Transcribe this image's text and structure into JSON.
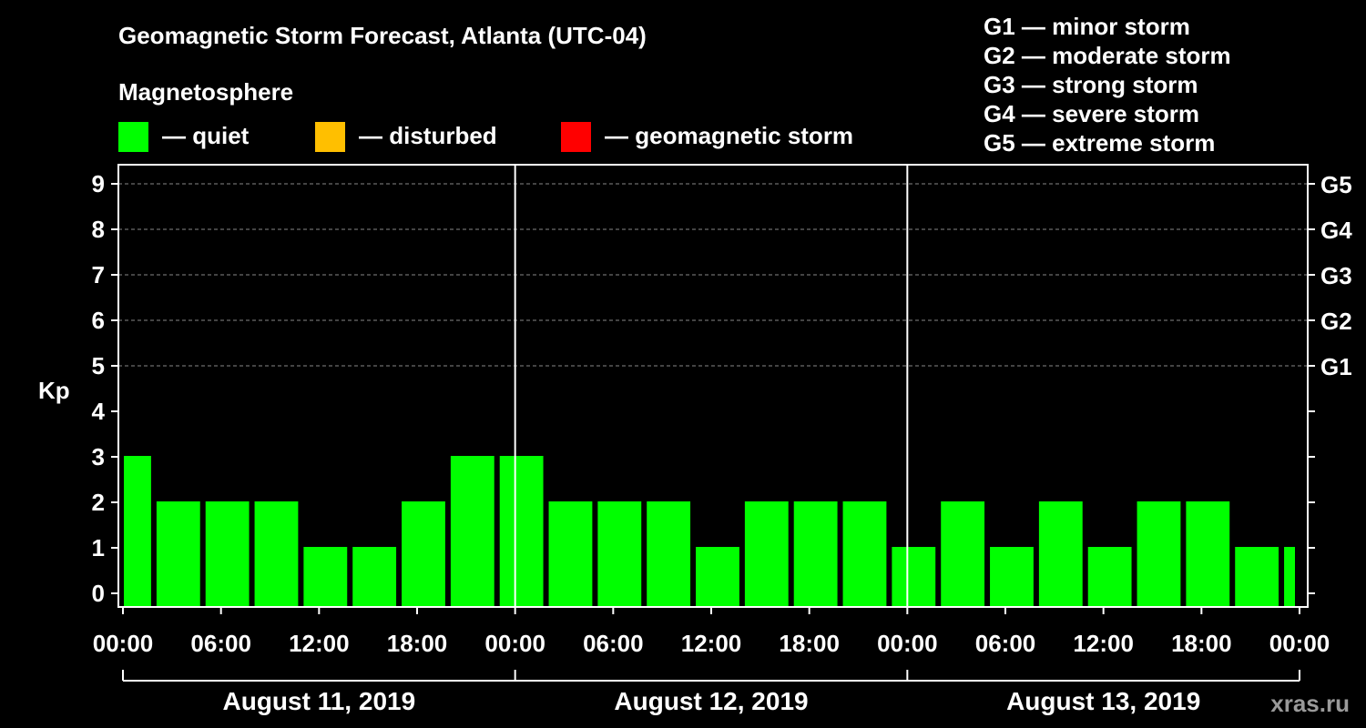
{
  "title": "Geomagnetic Storm Forecast, Atlanta (UTC-04)",
  "legend": {
    "heading": "Magnetosphere",
    "items": [
      {
        "label": "— quiet",
        "color": "#00ff00"
      },
      {
        "label": "— disturbed",
        "color": "#ffbf00"
      },
      {
        "label": "— geomagnetic storm",
        "color": "#ff0000"
      }
    ]
  },
  "storm_scale": [
    "G1 — minor storm",
    "G2 — moderate storm",
    "G3 — strong storm",
    "G4 — severe storm",
    "G5 — extreme storm"
  ],
  "watermark": "xras.ru",
  "chart_data": {
    "type": "bar",
    "ylabel": "Kp",
    "ylim": [
      0,
      9
    ],
    "yticks": [
      0,
      1,
      2,
      3,
      4,
      5,
      6,
      7,
      8,
      9
    ],
    "right_ticks": [
      {
        "kp": 5,
        "label": "G1"
      },
      {
        "kp": 6,
        "label": "G2"
      },
      {
        "kp": 7,
        "label": "G3"
      },
      {
        "kp": 8,
        "label": "G4"
      },
      {
        "kp": 9,
        "label": "G5"
      }
    ],
    "x_range_hours": [
      0,
      72
    ],
    "x_tick_hours": [
      0,
      6,
      12,
      18,
      24,
      30,
      36,
      42,
      48,
      54,
      60,
      66,
      72
    ],
    "x_tick_labels": [
      "00:00",
      "06:00",
      "12:00",
      "18:00",
      "00:00",
      "06:00",
      "12:00",
      "18:00",
      "00:00",
      "06:00",
      "12:00",
      "18:00",
      "00:00"
    ],
    "day_labels": [
      "August 11, 2019",
      "August 12, 2019",
      "August 13, 2019"
    ],
    "bars": [
      {
        "start": 0,
        "end": 2,
        "kp": 3
      },
      {
        "start": 2,
        "end": 5,
        "kp": 2
      },
      {
        "start": 5,
        "end": 8,
        "kp": 2
      },
      {
        "start": 8,
        "end": 11,
        "kp": 2
      },
      {
        "start": 11,
        "end": 14,
        "kp": 1
      },
      {
        "start": 14,
        "end": 17,
        "kp": 1
      },
      {
        "start": 17,
        "end": 20,
        "kp": 2
      },
      {
        "start": 20,
        "end": 23,
        "kp": 3
      },
      {
        "start": 23,
        "end": 26,
        "kp": 3
      },
      {
        "start": 26,
        "end": 29,
        "kp": 2
      },
      {
        "start": 29,
        "end": 32,
        "kp": 2
      },
      {
        "start": 32,
        "end": 35,
        "kp": 2
      },
      {
        "start": 35,
        "end": 38,
        "kp": 1
      },
      {
        "start": 38,
        "end": 41,
        "kp": 2
      },
      {
        "start": 41,
        "end": 44,
        "kp": 2
      },
      {
        "start": 44,
        "end": 47,
        "kp": 2
      },
      {
        "start": 47,
        "end": 50,
        "kp": 1
      },
      {
        "start": 50,
        "end": 53,
        "kp": 2
      },
      {
        "start": 53,
        "end": 56,
        "kp": 1
      },
      {
        "start": 56,
        "end": 59,
        "kp": 2
      },
      {
        "start": 59,
        "end": 62,
        "kp": 1
      },
      {
        "start": 62,
        "end": 65,
        "kp": 2
      },
      {
        "start": 65,
        "end": 68,
        "kp": 2
      },
      {
        "start": 68,
        "end": 71,
        "kp": 1
      },
      {
        "start": 71,
        "end": 72,
        "kp": 1
      }
    ],
    "bar_color": "#00ff00"
  }
}
